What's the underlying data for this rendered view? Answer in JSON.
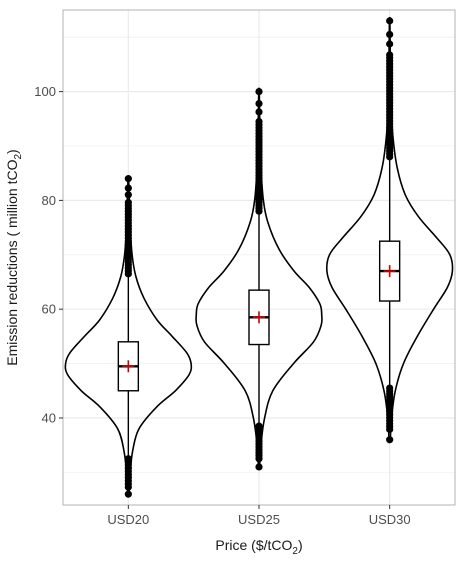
{
  "chart_data": {
    "type": "violin",
    "categories": [
      "USD20",
      "USD25",
      "USD30"
    ],
    "xlabel_main": "Price ($/tCO",
    "xlabel_sub": "2",
    "xlabel_tail": ")",
    "ylabel_main": "Emission reductions ( million tCO",
    "ylabel_sub": "2",
    "ylabel_tail": ")",
    "ylim": [
      24,
      115
    ],
    "y_ticks": [
      40,
      60,
      80,
      100
    ],
    "grid": true,
    "colors": {
      "outline": "#000000",
      "mean_marker": "#cc0000",
      "grid": "#ebebeb",
      "panel_border": "#b3b3b3"
    },
    "groups": [
      {
        "category": "USD20",
        "median": 49.5,
        "mean": 49.5,
        "q1": 45.0,
        "q3": 54.0,
        "whisker_low": 32.5,
        "whisker_high": 66.5,
        "min": 26.0,
        "max": 84.0,
        "profile": [
          [
            26,
            0.01
          ],
          [
            30,
            0.03
          ],
          [
            34,
            0.07
          ],
          [
            38,
            0.17
          ],
          [
            42,
            0.45
          ],
          [
            45,
            0.75
          ],
          [
            48,
            0.97
          ],
          [
            50,
            1.0
          ],
          [
            52,
            0.93
          ],
          [
            55,
            0.7
          ],
          [
            58,
            0.46
          ],
          [
            62,
            0.25
          ],
          [
            66,
            0.12
          ],
          [
            70,
            0.06
          ],
          [
            75,
            0.03
          ],
          [
            80,
            0.015
          ],
          [
            84,
            0.005
          ]
        ]
      },
      {
        "category": "USD25",
        "median": 58.5,
        "mean": 58.5,
        "q1": 53.5,
        "q3": 63.5,
        "whisker_low": 38.5,
        "whisker_high": 78.0,
        "min": 31.0,
        "max": 100.0,
        "profile": [
          [
            31,
            0.01
          ],
          [
            35,
            0.03
          ],
          [
            40,
            0.09
          ],
          [
            45,
            0.22
          ],
          [
            50,
            0.55
          ],
          [
            54,
            0.87
          ],
          [
            57,
            0.99
          ],
          [
            59,
            1.0
          ],
          [
            61,
            0.97
          ],
          [
            64,
            0.8
          ],
          [
            67,
            0.56
          ],
          [
            71,
            0.32
          ],
          [
            76,
            0.14
          ],
          [
            80,
            0.07
          ],
          [
            86,
            0.03
          ],
          [
            92,
            0.015
          ],
          [
            100,
            0.005
          ]
        ]
      },
      {
        "category": "USD30",
        "median": 67.0,
        "mean": 67.0,
        "q1": 61.5,
        "q3": 72.5,
        "whisker_low": 45.5,
        "whisker_high": 88.0,
        "min": 36.0,
        "max": 113.0,
        "profile": [
          [
            36,
            0.01
          ],
          [
            40,
            0.03
          ],
          [
            45,
            0.09
          ],
          [
            50,
            0.22
          ],
          [
            55,
            0.44
          ],
          [
            60,
            0.7
          ],
          [
            64,
            0.92
          ],
          [
            67,
            1.0
          ],
          [
            70,
            0.96
          ],
          [
            73,
            0.76
          ],
          [
            77,
            0.46
          ],
          [
            81,
            0.25
          ],
          [
            86,
            0.12
          ],
          [
            92,
            0.05
          ],
          [
            98,
            0.025
          ],
          [
            105,
            0.012
          ],
          [
            113,
            0.004
          ]
        ]
      }
    ]
  }
}
